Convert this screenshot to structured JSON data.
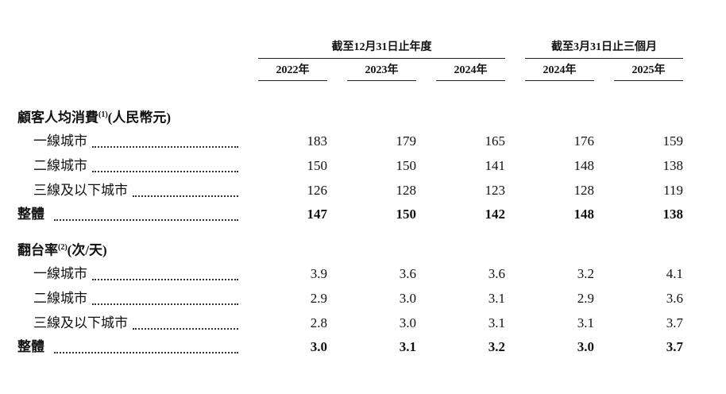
{
  "header": {
    "groups": [
      {
        "label": "截至12月31日止年度",
        "columns": [
          "2022年",
          "2023年",
          "2024年"
        ]
      },
      {
        "label": "截至3月31日止三個月",
        "columns": [
          "2024年",
          "2025年"
        ]
      }
    ]
  },
  "sections": [
    {
      "title": "顧客人均消費",
      "note": "(1)",
      "unit": "(人民幣元)",
      "rows": [
        {
          "label": "一線城市",
          "values": [
            "183",
            "179",
            "165",
            "176",
            "159"
          ]
        },
        {
          "label": "二線城市",
          "values": [
            "150",
            "150",
            "141",
            "148",
            "138"
          ]
        },
        {
          "label": "三線及以下城市",
          "values": [
            "126",
            "128",
            "123",
            "128",
            "119"
          ]
        }
      ],
      "total": {
        "label": "整體",
        "values": [
          "147",
          "150",
          "142",
          "148",
          "138"
        ]
      }
    },
    {
      "title": "翻台率",
      "note": "(2)",
      "unit": "(次/天)",
      "rows": [
        {
          "label": "一線城市",
          "values": [
            "3.9",
            "3.6",
            "3.6",
            "3.2",
            "4.1"
          ]
        },
        {
          "label": "二線城市",
          "values": [
            "2.9",
            "3.0",
            "3.1",
            "2.9",
            "3.6"
          ]
        },
        {
          "label": "三線及以下城市",
          "values": [
            "2.8",
            "3.0",
            "3.1",
            "3.1",
            "3.7"
          ]
        }
      ],
      "total": {
        "label": "整體",
        "values": [
          "3.0",
          "3.1",
          "3.2",
          "3.0",
          "3.7"
        ]
      }
    }
  ]
}
